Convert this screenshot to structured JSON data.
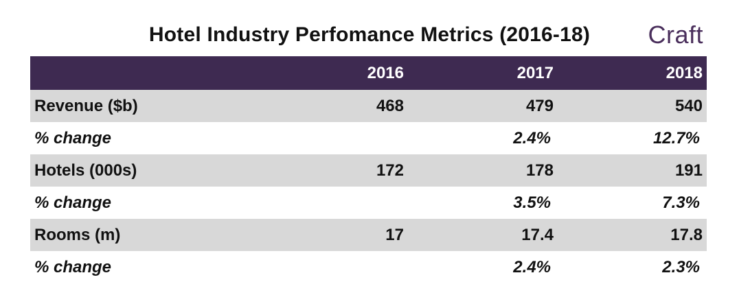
{
  "title": "Hotel Industry Perfomance Metrics (2016-18)",
  "logo_text": "Craft",
  "colors": {
    "header_bg": "#3e2a51",
    "row_shaded": "#d8d8d8",
    "logo": "#4a2f5c"
  },
  "chart_data": {
    "type": "table",
    "title": "Hotel Industry Perfomance Metrics (2016-18)",
    "columns": [
      "",
      "2016",
      "2017",
      "2018"
    ],
    "rows": [
      {
        "label": "Revenue ($b)",
        "values": [
          "468",
          "479",
          "540"
        ]
      },
      {
        "label": "% change",
        "values": [
          "",
          "2.4%",
          "12.7%"
        ]
      },
      {
        "label": "Hotels (000s)",
        "values": [
          "172",
          "178",
          "191"
        ]
      },
      {
        "label": "% change",
        "values": [
          "",
          "3.5%",
          "7.3%"
        ]
      },
      {
        "label": "Rooms (m)",
        "values": [
          "17",
          "17.4",
          "17.8"
        ]
      },
      {
        "label": "% change",
        "values": [
          "",
          "2.4%",
          "2.3%"
        ]
      }
    ]
  }
}
